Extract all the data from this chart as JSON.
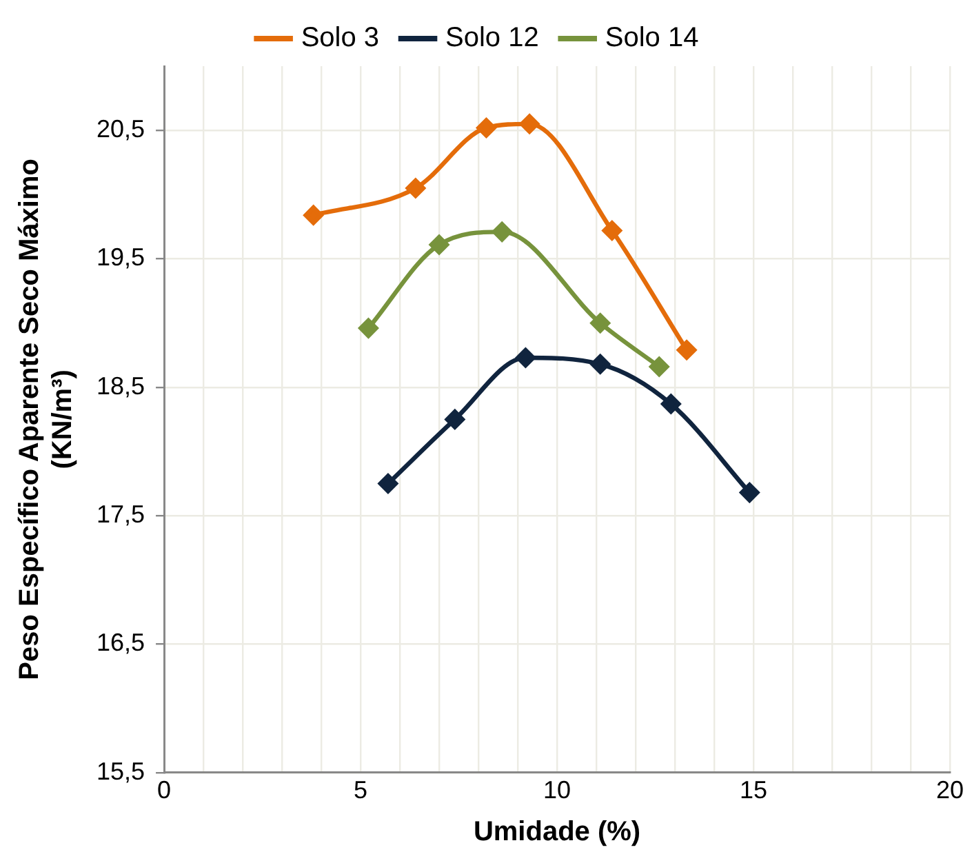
{
  "chart_data": {
    "type": "line",
    "xlabel": "Umidade (%)",
    "ylabel": "Peso Específico Aparente Seco Máximo\n(KN/m³)",
    "series": [
      {
        "name": "Solo 3",
        "color": "#e46c0a",
        "x": [
          3.8,
          6.4,
          8.2,
          9.3,
          11.4,
          13.3
        ],
        "values": [
          19.84,
          20.05,
          20.52,
          20.55,
          19.72,
          18.79
        ]
      },
      {
        "name": "Solo 12",
        "color": "#10243e",
        "x": [
          5.7,
          7.4,
          9.2,
          11.1,
          12.9,
          14.9
        ],
        "values": [
          17.75,
          18.25,
          18.73,
          18.68,
          18.37,
          17.68
        ]
      },
      {
        "name": "Solo 14",
        "color": "#77933c",
        "x": [
          5.2,
          7.0,
          8.6,
          11.1,
          12.6
        ],
        "values": [
          18.96,
          19.61,
          19.71,
          19.0,
          18.66
        ]
      }
    ],
    "xlim": [
      0,
      20
    ],
    "xticks": [
      0,
      {
        "value": 1,
        "label": null
      },
      {
        "value": 2,
        "label": null
      },
      {
        "value": 3,
        "label": null
      },
      {
        "value": 4,
        "label": null
      },
      5,
      {
        "value": 6,
        "label": null
      },
      {
        "value": 7,
        "label": null
      },
      {
        "value": 8,
        "label": null
      },
      {
        "value": 9,
        "label": null
      },
      10,
      {
        "value": 11,
        "label": null
      },
      {
        "value": 12,
        "label": null
      },
      {
        "value": 13,
        "label": null
      },
      {
        "value": 14,
        "label": null
      },
      15,
      {
        "value": 16,
        "label": null
      },
      {
        "value": 17,
        "label": null
      },
      {
        "value": 18,
        "label": null
      },
      {
        "value": 19,
        "label": null
      },
      20
    ],
    "ylim": [
      15.5,
      21
    ],
    "yticks": [
      {
        "value": 15.5,
        "label": "15,5"
      },
      {
        "value": 16.5,
        "label": "16,5"
      },
      {
        "value": 17.5,
        "label": "17,5"
      },
      {
        "value": 18.5,
        "label": "18,5"
      },
      {
        "value": 19.5,
        "label": "19,5"
      },
      {
        "value": 20.5,
        "label": "20,5"
      }
    ],
    "grid": true,
    "legend": "top",
    "marker": "diamond",
    "line_style": "solid"
  }
}
